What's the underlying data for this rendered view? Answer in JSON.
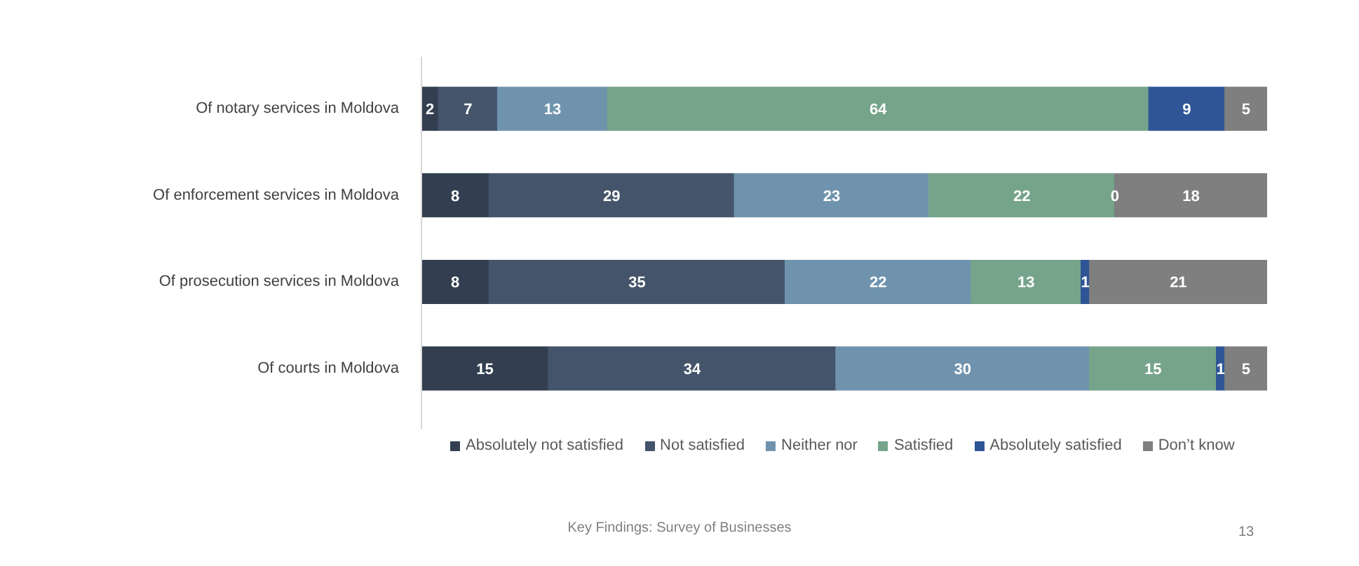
{
  "chart_data": {
    "type": "bar",
    "orientation": "horizontal",
    "stacked": true,
    "data_labels": true,
    "legend": "bottom",
    "grid": false,
    "categories": [
      "Of notary services in Moldova",
      "Of enforcement services in Moldova",
      "Of prosecution services in Moldova",
      "Of courts in Moldova"
    ],
    "series": [
      {
        "name": "Absolutely not satisfied",
        "color": "#333f50",
        "values": [
          2,
          8,
          8,
          15
        ]
      },
      {
        "name": "Not satisfied",
        "color": "#44546a",
        "values": [
          7,
          29,
          35,
          34
        ]
      },
      {
        "name": "Neither nor",
        "color": "#6f93ad",
        "values": [
          13,
          23,
          22,
          30
        ]
      },
      {
        "name": "Satisfied",
        "color": "#76a48a",
        "values": [
          64,
          22,
          13,
          15
        ]
      },
      {
        "name": "Absolutely satisfied",
        "color": "#2f5597",
        "values": [
          9,
          0,
          1,
          1
        ]
      },
      {
        "name": "Don’t know",
        "color": "#7f7f7f",
        "values": [
          5,
          18,
          21,
          5
        ]
      }
    ],
    "annotations": [
      "Key Findings: Survey of Businesses",
      "13"
    ]
  }
}
